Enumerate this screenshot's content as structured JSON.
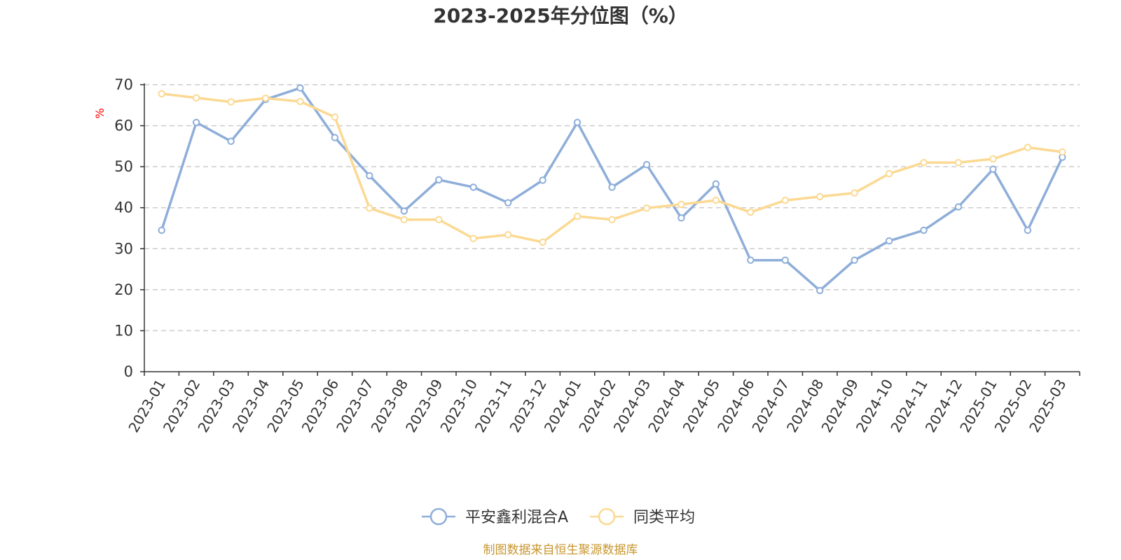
{
  "chart_data": {
    "type": "line",
    "title": "2023-2025年分位图（%）",
    "ylabel": "%",
    "xlabel": "",
    "ylim": [
      0,
      70
    ],
    "yticks": [
      0,
      10,
      20,
      30,
      40,
      50,
      60,
      70
    ],
    "grid": true,
    "legend_position": "bottom",
    "categories": [
      "2023-01",
      "2023-02",
      "2023-03",
      "2023-04",
      "2023-05",
      "2023-06",
      "2023-07",
      "2023-08",
      "2023-09",
      "2023-10",
      "2023-11",
      "2023-12",
      "2024-01",
      "2024-02",
      "2024-03",
      "2024-04",
      "2024-05",
      "2024-06",
      "2024-07",
      "2024-08",
      "2024-09",
      "2024-10",
      "2024-11",
      "2024-12",
      "2025-01",
      "2025-02",
      "2025-03"
    ],
    "series": [
      {
        "name": "平安鑫利混合A",
        "color": "#8eaed9",
        "values": [
          34.5,
          60.8,
          56.2,
          66.4,
          69.2,
          57.1,
          47.8,
          39.2,
          46.8,
          45.0,
          41.2,
          46.7,
          60.8,
          45.0,
          50.5,
          37.5,
          45.8,
          27.2,
          27.2,
          19.8,
          27.2,
          31.9,
          34.5,
          40.2,
          49.4,
          34.5,
          52.3
        ]
      },
      {
        "name": "同类平均",
        "color": "#fbd992",
        "values": [
          67.8,
          66.8,
          65.8,
          66.7,
          65.9,
          62.1,
          39.9,
          37.1,
          37.1,
          32.5,
          33.4,
          31.6,
          37.9,
          37.1,
          39.9,
          40.8,
          41.8,
          38.9,
          41.8,
          42.7,
          43.6,
          48.3,
          51.0,
          51.0,
          51.9,
          54.7,
          53.6
        ]
      }
    ]
  },
  "colors": {
    "axis": "#333333",
    "grid": "#cccccc",
    "unit": "#ff0000",
    "source": "#c8962d"
  },
  "footer": {
    "source": "制图数据来自恒生聚源数据库"
  }
}
